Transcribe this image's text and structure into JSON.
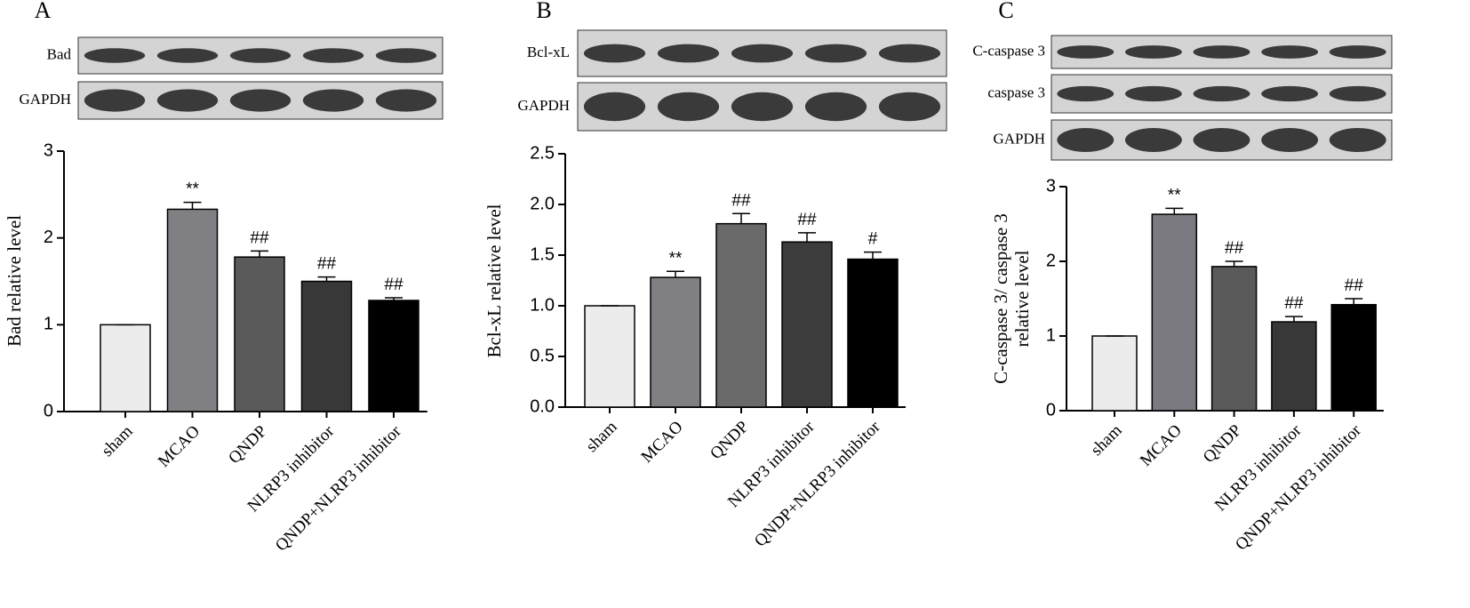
{
  "chart_data": [
    {
      "type": "bar",
      "panel": "A",
      "blot_labels": [
        "Bad",
        "GAPDH"
      ],
      "ylabel": "Bad relative level",
      "categories": [
        "sham",
        "MCAO",
        "QNDP",
        "NLRP3 inhibitor",
        "QNDP+NLRP3 inhibitor"
      ],
      "values": [
        1.0,
        2.33,
        1.78,
        1.5,
        1.28
      ],
      "errors": [
        0,
        0.08,
        0.07,
        0.05,
        0.03
      ],
      "annotations": [
        null,
        "**",
        "##",
        "##",
        "##"
      ],
      "colors": [
        "#ececec",
        "#808084",
        "#5a5a5a",
        "#383838",
        "#000000"
      ],
      "ylim": [
        0,
        3
      ],
      "yticks": [
        0,
        1,
        2,
        3
      ]
    },
    {
      "type": "bar",
      "panel": "B",
      "blot_labels": [
        "Bcl-xL",
        "GAPDH"
      ],
      "ylabel": "Bcl-xL relative level",
      "categories": [
        "sham",
        "MCAO",
        "QNDP",
        "NLRP3 inhibitor",
        "QNDP+NLRP3 inhibitor"
      ],
      "values": [
        1.0,
        1.28,
        1.81,
        1.63,
        1.46
      ],
      "errors": [
        0,
        0.06,
        0.1,
        0.09,
        0.07
      ],
      "annotations": [
        null,
        "**",
        "##",
        "##",
        "#"
      ],
      "colors": [
        "#ececec",
        "#808084",
        "#6a6a6a",
        "#3c3c3c",
        "#000000"
      ],
      "ylim": [
        0,
        2.5
      ],
      "yticks": [
        {
          "value": 0,
          "label": "0.0"
        },
        0.5,
        {
          "value": 1,
          "label": "1.0"
        },
        1.5,
        {
          "value": 2,
          "label": "2.0"
        },
        2.5
      ]
    },
    {
      "type": "bar",
      "panel": "C",
      "blot_labels": [
        "C-caspase 3",
        "caspase 3",
        "GAPDH"
      ],
      "ylabel": [
        "C-caspase 3/ caspase 3",
        "relative level"
      ],
      "categories": [
        "sham",
        "MCAO",
        "QNDP",
        "NLRP3 inhibitor",
        "QNDP+NLRP3 inhibitor"
      ],
      "values": [
        1.0,
        2.63,
        1.93,
        1.19,
        1.42
      ],
      "errors": [
        0,
        0.08,
        0.07,
        0.07,
        0.08
      ],
      "annotations": [
        null,
        "**",
        "##",
        "##",
        "##"
      ],
      "colors": [
        "#ececec",
        "#7a7a80",
        "#5a5a5a",
        "#383838",
        "#000000"
      ],
      "ylim": [
        0,
        3
      ],
      "yticks": [
        0,
        1,
        2,
        3
      ]
    }
  ]
}
